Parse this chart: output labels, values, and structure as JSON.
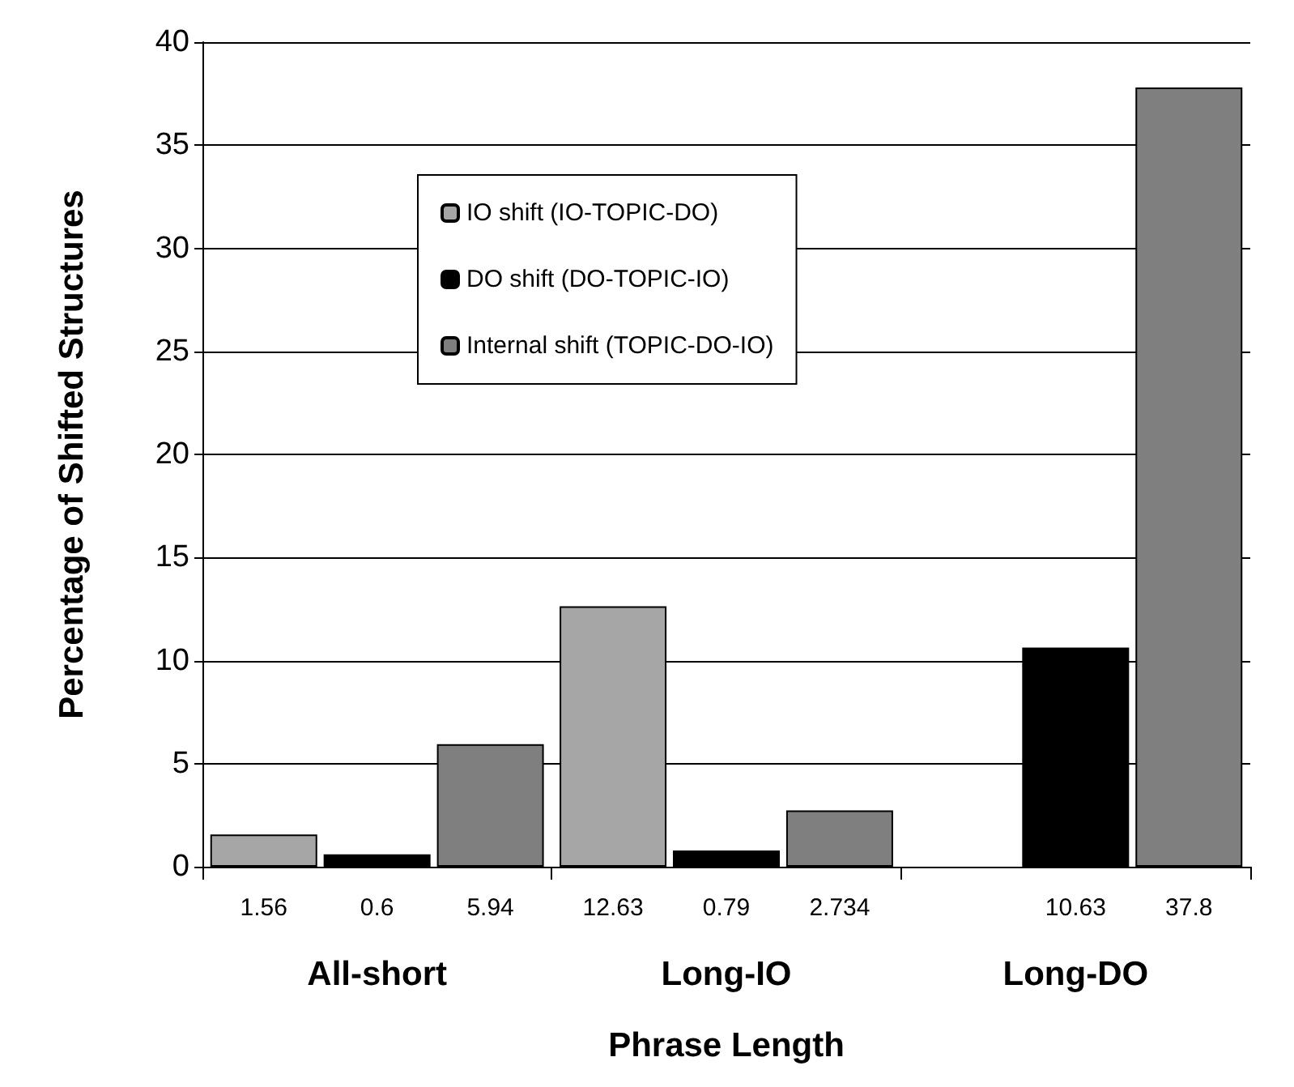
{
  "chart_data": {
    "type": "bar",
    "xlabel": "Phrase Length",
    "ylabel": "Percentage of Shifted Structures",
    "categories": [
      "All-short",
      "Long-IO",
      "Long-DO"
    ],
    "series": [
      {
        "name": "IO shift (IO-TOPIC-DO)",
        "color": "#a6a6a6",
        "values": [
          1.56,
          12.63,
          null
        ]
      },
      {
        "name": "DO shift (DO-TOPIC-IO)",
        "color": "#000000",
        "values": [
          0.6,
          0.79,
          10.63
        ]
      },
      {
        "name": "Internal shift (TOPIC-DO-IO)",
        "color": "#7f7f7f",
        "values": [
          5.94,
          2.734,
          37.8
        ]
      }
    ],
    "ylim": [
      0,
      40
    ],
    "yticks": [
      0,
      5,
      10,
      15,
      20,
      25,
      30,
      35,
      40
    ],
    "grid": "y",
    "legend": "top left",
    "data_labels": true
  }
}
